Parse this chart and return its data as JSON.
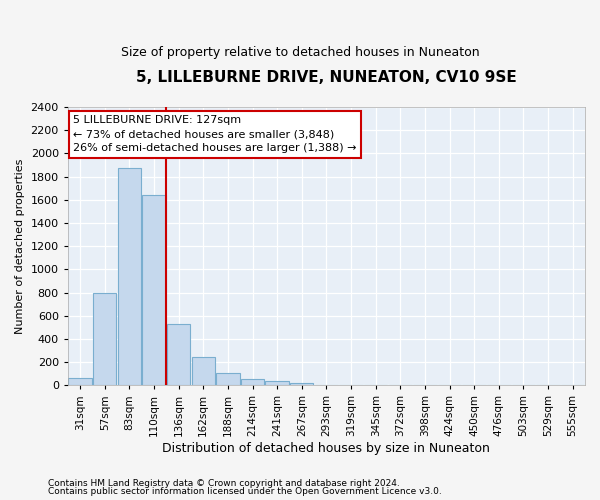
{
  "title": "5, LILLEBURNE DRIVE, NUNEATON, CV10 9SE",
  "subtitle": "Size of property relative to detached houses in Nuneaton",
  "xlabel": "Distribution of detached houses by size in Nuneaton",
  "ylabel": "Number of detached properties",
  "footer1": "Contains HM Land Registry data © Crown copyright and database right 2024.",
  "footer2": "Contains public sector information licensed under the Open Government Licence v3.0.",
  "categories": [
    "31sqm",
    "57sqm",
    "83sqm",
    "110sqm",
    "136sqm",
    "162sqm",
    "188sqm",
    "214sqm",
    "241sqm",
    "267sqm",
    "293sqm",
    "319sqm",
    "345sqm",
    "372sqm",
    "398sqm",
    "424sqm",
    "450sqm",
    "476sqm",
    "503sqm",
    "529sqm",
    "555sqm"
  ],
  "values": [
    60,
    800,
    1870,
    1640,
    530,
    240,
    110,
    55,
    35,
    20,
    5,
    0,
    0,
    0,
    0,
    0,
    0,
    0,
    0,
    0,
    0
  ],
  "bar_color": "#c5d8ed",
  "bar_edge_color": "#7aaecf",
  "annotation_line1": "5 LILLEBURNE DRIVE: 127sqm",
  "annotation_line2": "← 73% of detached houses are smaller (3,848)",
  "annotation_line3": "26% of semi-detached houses are larger (1,388) →",
  "annotation_border_color": "#cc0000",
  "vline_color": "#cc0000",
  "ylim": [
    0,
    2400
  ],
  "yticks": [
    0,
    200,
    400,
    600,
    800,
    1000,
    1200,
    1400,
    1600,
    1800,
    2000,
    2200,
    2400
  ],
  "bg_color": "#f5f5f5",
  "plot_bg_color": "#e8eff7",
  "title_fontsize": 11,
  "subtitle_fontsize": 9,
  "ylabel_fontsize": 8,
  "xlabel_fontsize": 9,
  "ytick_fontsize": 8,
  "xtick_fontsize": 7.5
}
